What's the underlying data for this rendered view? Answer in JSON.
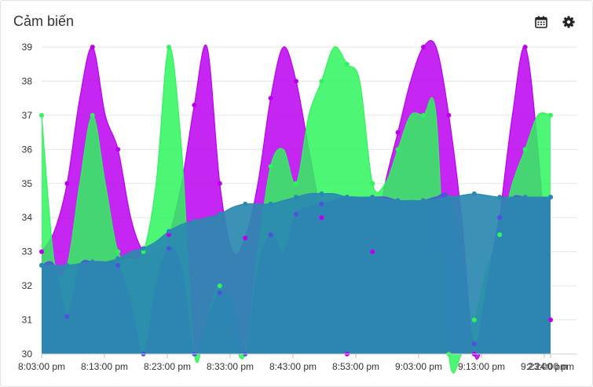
{
  "card": {
    "title": "Cảm biến",
    "toolbar": {
      "calendar_icon": "calendar-icon",
      "settings_icon": "gear-icon"
    }
  },
  "chart_data": {
    "type": "area",
    "title": "Cảm biến",
    "xlabel": "",
    "ylabel": "",
    "ylim": [
      30,
      39
    ],
    "yticks": [
      30,
      31,
      32,
      33,
      34,
      35,
      36,
      37,
      38,
      39
    ],
    "x": [
      0,
      6,
      12,
      18,
      24,
      30,
      36,
      42,
      48,
      54,
      60,
      66,
      72,
      78,
      84,
      90,
      96,
      102,
      108,
      114,
      120,
      126,
      132,
      138,
      144,
      150,
      156,
      162,
      168,
      174,
      180,
      186,
      192,
      198,
      204,
      210,
      216,
      222,
      228,
      234,
      240
    ],
    "xticks": [
      {
        "minute": 0,
        "label": "8:03:00 pm"
      },
      {
        "minute": 10,
        "label": "8:13:00 pm"
      },
      {
        "minute": 20,
        "label": "8:23:00 pm"
      },
      {
        "minute": 30,
        "label": "8:33:00 pm"
      },
      {
        "minute": 40,
        "label": "8:43:00 pm"
      },
      {
        "minute": 50,
        "label": "8:53:00 pm"
      },
      {
        "minute": 60,
        "label": "9:03:00 pm"
      },
      {
        "minute": 70,
        "label": "9:13:00 pm"
      },
      {
        "minute": 80,
        "label": "9:23:00 pm"
      },
      {
        "minute": 81,
        "label": "2:24:00 pm"
      }
    ],
    "grid": true,
    "legend": "none",
    "series": [
      {
        "color": "#bb00ee",
        "values": [
          33,
          33.6,
          35,
          37.5,
          39,
          37,
          36,
          34,
          33,
          33,
          33.5,
          35,
          37.3,
          39,
          35,
          33,
          33.4,
          35,
          37.5,
          39,
          38,
          36,
          34,
          32,
          30,
          31,
          33,
          35,
          36.5,
          38,
          39.5,
          39,
          37,
          34,
          30,
          31,
          34,
          37,
          39,
          36,
          31
        ]
      },
      {
        "color": "#2ef55c",
        "values": [
          37,
          32.7,
          32.6,
          35,
          37,
          35,
          33,
          32.8,
          33,
          35,
          39,
          36,
          30,
          31,
          32,
          30.5,
          30,
          33,
          35.5,
          36,
          35,
          37,
          38,
          39,
          38.5,
          38,
          35,
          35,
          36,
          37,
          37,
          37,
          30,
          30,
          31,
          32.5,
          33.5,
          35,
          36,
          37,
          37
        ]
      },
      {
        "color": "#4c52dc",
        "values": [
          32.6,
          32.6,
          31.1,
          32.6,
          32.7,
          32.7,
          32.6,
          31.5,
          30,
          32,
          33.1,
          32.5,
          30,
          31,
          31.8,
          31.5,
          30,
          32.5,
          33.5,
          33,
          34.1,
          34.3,
          34.4,
          34.5,
          34.6,
          34.6,
          34.6,
          34.6,
          34.5,
          34.5,
          34.5,
          34.6,
          34.6,
          33,
          30.3,
          32,
          34,
          34.6,
          34.6,
          34.6,
          34.6
        ]
      },
      {
        "color": "#2a89b0",
        "values": [
          32.6,
          32.6,
          32.6,
          32.65,
          32.7,
          32.7,
          32.8,
          33,
          33.1,
          33.3,
          33.6,
          33.8,
          33.9,
          34,
          34.1,
          34.3,
          34.4,
          34.4,
          34.4,
          34.5,
          34.6,
          34.7,
          34.7,
          34.7,
          34.6,
          34.6,
          34.6,
          34.55,
          34.5,
          34.5,
          34.5,
          34.55,
          34.6,
          34.65,
          34.7,
          34.65,
          34.6,
          34.6,
          34.6,
          34.6,
          34.6
        ]
      }
    ]
  }
}
